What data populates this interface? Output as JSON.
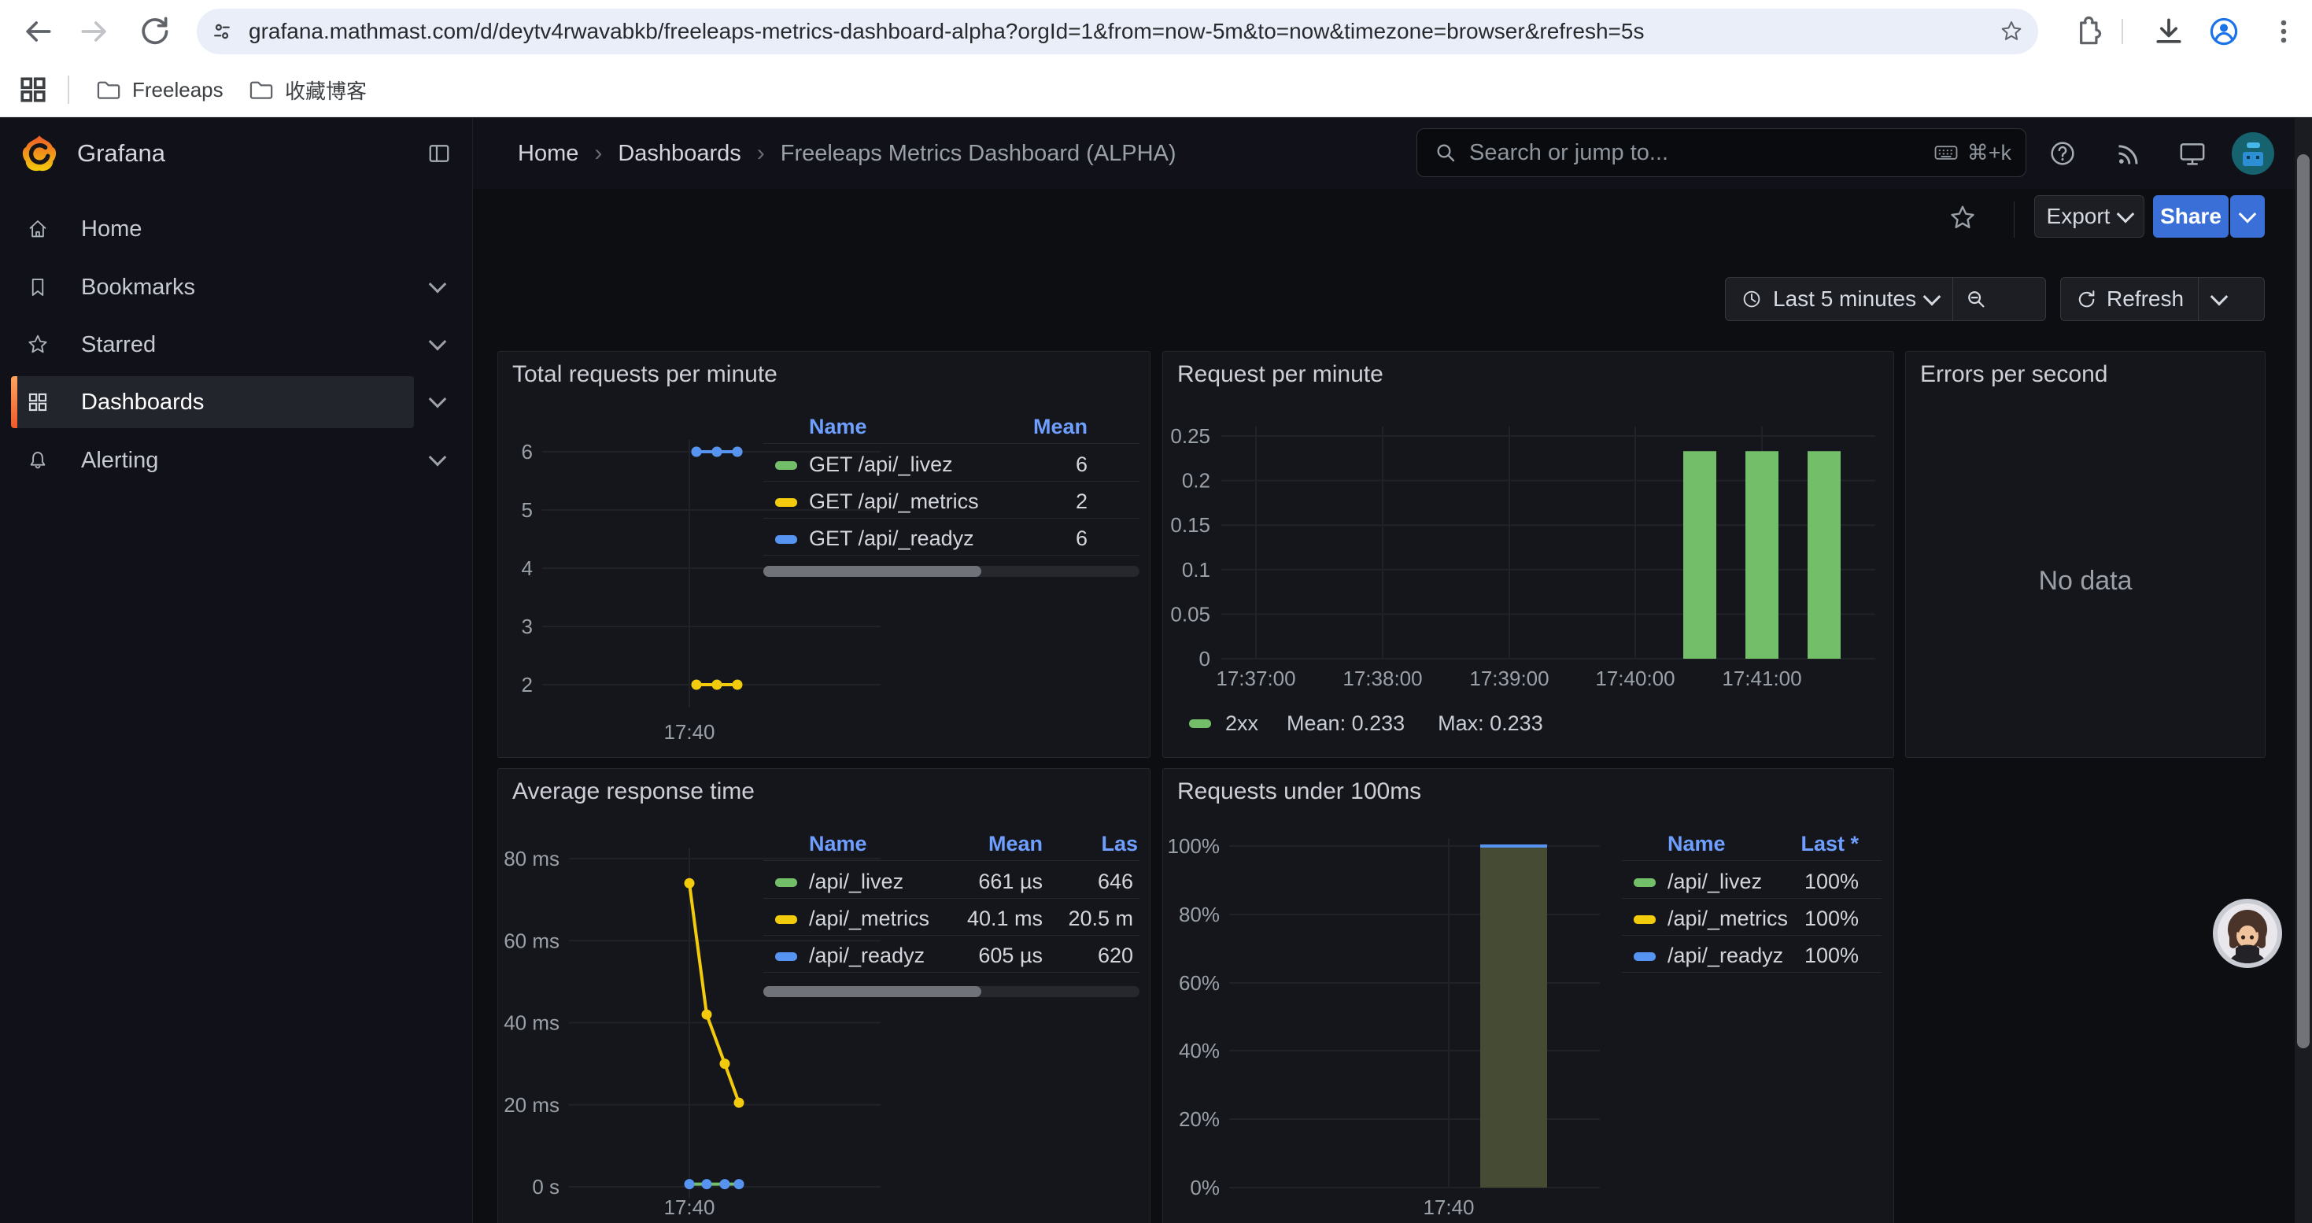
{
  "browser": {
    "url": "grafana.mathmast.com/d/deytv4rwavabkb/freeleaps-metrics-dashboard-alpha?orgId=1&from=now-5m&to=now&timezone=browser&refresh=5s",
    "bookmarks": [
      {
        "label": "Freeleaps"
      },
      {
        "label": "收藏博客"
      }
    ]
  },
  "nav": {
    "brand": "Grafana",
    "breadcrumb": [
      "Home",
      "Dashboards",
      "Freeleaps Metrics Dashboard (ALPHA)"
    ],
    "sep": "›",
    "search_placeholder": "Search or jump to...",
    "search_shortcut": "⌘+k"
  },
  "toolbar": {
    "export": "Export",
    "share": "Share"
  },
  "timebar": {
    "range": "Last 5 minutes",
    "refresh": "Refresh"
  },
  "sidebar": {
    "items": [
      {
        "label": "Home"
      },
      {
        "label": "Bookmarks"
      },
      {
        "label": "Starred"
      },
      {
        "label": "Dashboards"
      },
      {
        "label": "Alerting"
      }
    ]
  },
  "panels": {
    "total_requests": {
      "title": "Total requests per minute",
      "legend": {
        "col_name": "Name",
        "col_mean": "Mean",
        "rows": [
          {
            "color": "#73bf69",
            "name": "GET /api/_livez",
            "mean": "6"
          },
          {
            "color": "#f2cc0c",
            "name": "GET /api/_metrics",
            "mean": "2"
          },
          {
            "color": "#5794f2",
            "name": "GET /api/_readyz",
            "mean": "6"
          }
        ]
      },
      "chart_data": {
        "type": "line",
        "x_tick_label": "17:40",
        "y_ticks": [
          2,
          3,
          4,
          5,
          6
        ],
        "ylim": [
          2,
          6
        ],
        "series": [
          {
            "name": "GET /api/_livez",
            "color": "#73bf69",
            "mean": 6,
            "values": [
              6,
              6,
              6
            ]
          },
          {
            "name": "GET /api/_metrics",
            "color": "#f2cc0c",
            "mean": 2,
            "values": [
              2,
              2,
              2
            ]
          },
          {
            "name": "GET /api/_readyz",
            "color": "#5794f2",
            "mean": 6,
            "values": [
              6,
              6,
              6
            ]
          }
        ]
      }
    },
    "request_per_minute": {
      "title": "Request per minute",
      "legend": {
        "series": "2xx",
        "mean": "Mean: 0.233",
        "max": "Max: 0.233"
      },
      "chart_data": {
        "type": "bar",
        "color": "#73bf69",
        "y_ticks": [
          0,
          0.05,
          0.1,
          0.15,
          0.2,
          0.25
        ],
        "y_max": 0.25,
        "x_ticks": [
          "17:37:00",
          "17:38:00",
          "17:39:00",
          "17:40:00",
          "17:41:00"
        ],
        "bars": [
          0.233,
          0.233,
          0.233
        ],
        "series_label": "2xx",
        "mean": 0.233,
        "max": 0.233
      }
    },
    "errors_per_second": {
      "title": "Errors per second",
      "no_data": "No data"
    },
    "avg_response": {
      "title": "Average response time",
      "legend": {
        "col_name": "Name",
        "col_mean": "Mean",
        "col_last": "Las",
        "rows": [
          {
            "color": "#73bf69",
            "name": "/api/_livez",
            "mean": "661 µs",
            "last": "646"
          },
          {
            "color": "#f2cc0c",
            "name": "/api/_metrics",
            "mean": "40.1 ms",
            "last": "20.5 m"
          },
          {
            "color": "#5794f2",
            "name": "/api/_readyz",
            "mean": "605 µs",
            "last": "620"
          }
        ]
      },
      "chart_data": {
        "type": "line",
        "x_tick_label": "17:40",
        "y_tick_labels": [
          "0 s",
          "20 ms",
          "40 ms",
          "60 ms",
          "80 ms"
        ],
        "y_max_ms": 80,
        "series": [
          {
            "name": "/api/_metrics",
            "color": "#f2cc0c",
            "values_ms": [
              74,
              42,
              30,
              20.5
            ]
          },
          {
            "name": "/api/_livez",
            "color": "#73bf69",
            "values_ms": [
              0.661,
              0.661,
              0.661,
              0.646
            ]
          },
          {
            "name": "/api/_readyz",
            "color": "#5794f2",
            "values_ms": [
              0.605,
              0.605,
              0.605,
              0.62
            ]
          }
        ]
      }
    },
    "under_100ms": {
      "title": "Requests under 100ms",
      "legend": {
        "col_name": "Name",
        "col_last": "Last *",
        "rows": [
          {
            "color": "#73bf69",
            "name": "/api/_livez",
            "last": "100%"
          },
          {
            "color": "#f2cc0c",
            "name": "/api/_metrics",
            "last": "100%"
          },
          {
            "color": "#5794f2",
            "name": "/api/_readyz",
            "last": "100%"
          }
        ]
      },
      "chart_data": {
        "type": "bar",
        "x_tick_label": "17:40",
        "y_tick_labels": [
          "0%",
          "20%",
          "40%",
          "60%",
          "80%",
          "100%"
        ],
        "bar": {
          "value_pct": 100,
          "fill": "#454c33",
          "top_color": "#5794f2"
        },
        "series": [
          {
            "name": "/api/_livez",
            "last_pct": 100
          },
          {
            "name": "/api/_metrics",
            "last_pct": 100
          },
          {
            "name": "/api/_readyz",
            "last_pct": 100
          }
        ]
      }
    }
  },
  "colors": {
    "accent_blue": "#3a6fd8",
    "legend_header": "#6e9fff",
    "green": "#73bf69",
    "yellow": "#f2cc0c",
    "blue": "#5794f2",
    "active_accent": "#f05a28"
  }
}
